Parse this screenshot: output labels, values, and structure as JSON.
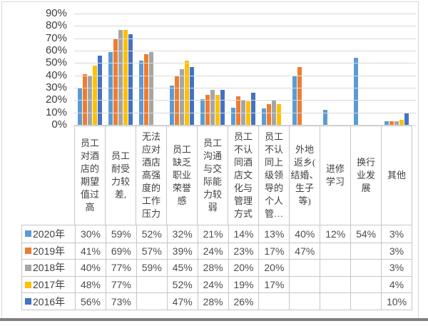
{
  "frame": {
    "border_color": "#d8d8d8",
    "bottom_edge_color": "#808080",
    "background": "#ffffff"
  },
  "chart_data": {
    "type": "bar",
    "title": "",
    "xlabel": "",
    "ylabel": "",
    "ylim": [
      0,
      90
    ],
    "y_ticks": [
      "90%",
      "80%",
      "70%",
      "60%",
      "50%",
      "40%",
      "30%",
      "20%",
      "10%",
      "0%"
    ],
    "grid": true,
    "legend_position": "table-left",
    "value_suffix": "%",
    "categories": [
      "员工\n对酒\n店的\n期望\n值过\n高",
      "员工\n耐受\n力较\n差,",
      "无法\n应对\n酒店\n高强\n度的\n工作\n压力",
      "员工\n缺乏\n职业\n荣誉\n感",
      "员工\n沟通\n与交\n际能\n力较\n弱",
      "员工\n不认\n同酒\n店文\n化与\n管理\n方式",
      "员工\n不认\n同上\n级领\n导的\n个人\n管…",
      "外地\n返乡(\n结婚、\n生子\n等)",
      "进修\n学习",
      "换行\n业发\n展",
      "其他"
    ],
    "series": [
      {
        "name": "2020年",
        "color": "#5B9BD5",
        "values": [
          30,
          59,
          52,
          32,
          21,
          14,
          13,
          40,
          12,
          54,
          3
        ]
      },
      {
        "name": "2019年",
        "color": "#ED7D31",
        "values": [
          41,
          69,
          57,
          39,
          24,
          23,
          17,
          47,
          null,
          null,
          3
        ]
      },
      {
        "name": "2018年",
        "color": "#A5A5A5",
        "values": [
          40,
          77,
          59,
          45,
          28,
          20,
          20,
          null,
          null,
          null,
          3
        ]
      },
      {
        "name": "2017年",
        "color": "#FFC000",
        "values": [
          48,
          77,
          null,
          52,
          24,
          19,
          17,
          null,
          null,
          null,
          4
        ]
      },
      {
        "name": "2016年",
        "color": "#4472C4",
        "values": [
          56,
          73,
          null,
          47,
          28,
          26,
          null,
          null,
          null,
          null,
          10
        ]
      }
    ]
  }
}
